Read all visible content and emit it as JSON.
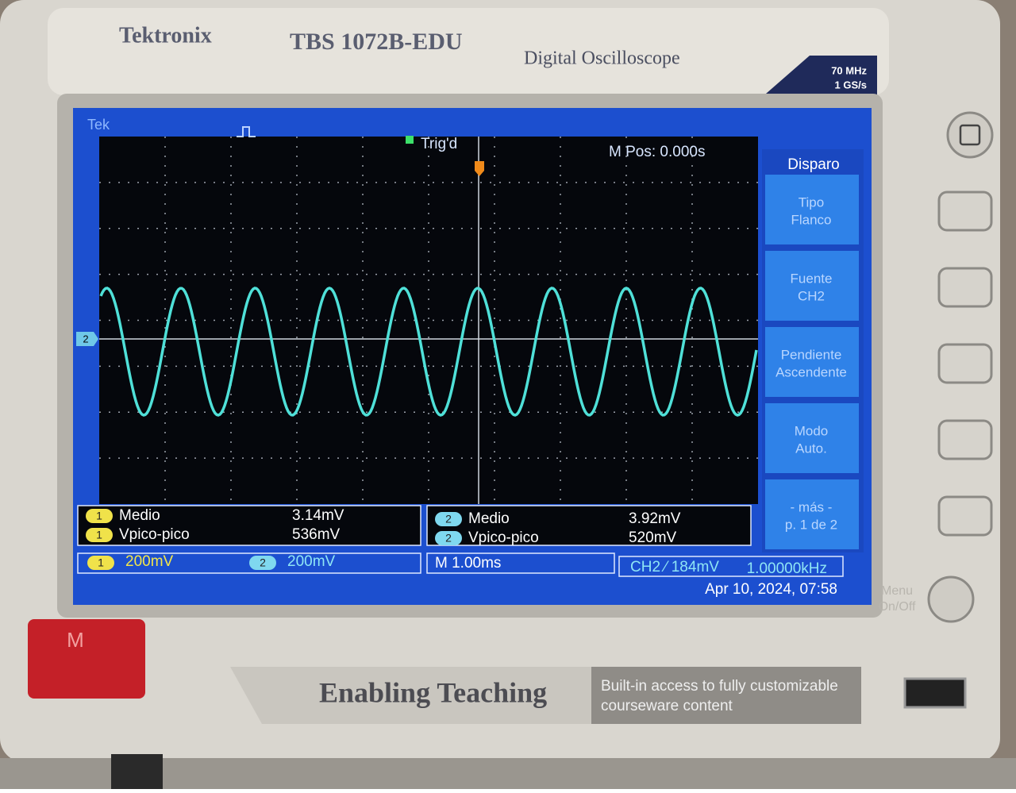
{
  "header": {
    "brand": "Tektronix",
    "model": "TBS 1072B-EDU",
    "product": "Digital Oscilloscope",
    "bandwidth": "70 MHz",
    "sample_rate": "1 GS/s"
  },
  "screen": {
    "logo": "Tek",
    "trigger_state": "Trig'd",
    "position": "M Pos: 0.000s",
    "channel_marker": "2"
  },
  "menu": {
    "title": "Disparo",
    "buttons": [
      [
        "Tipo",
        "Flanco"
      ],
      [
        "Fuente",
        "CH2"
      ],
      [
        "Pendiente",
        "Ascendente"
      ],
      [
        "Modo",
        "Auto."
      ],
      [
        "- más -",
        "p. 1 de 2"
      ]
    ]
  },
  "measurements": [
    {
      "channel": "1",
      "items": [
        {
          "label": "Medio",
          "value": "3.14mV"
        },
        {
          "label": "Vpico-pico",
          "value": "536mV"
        }
      ]
    },
    {
      "channel": "2",
      "items": [
        {
          "label": "Medio",
          "value": "3.92mV"
        },
        {
          "label": "Vpico-pico",
          "value": "520mV"
        }
      ]
    }
  ],
  "status": {
    "ch1_channel": "1",
    "ch1_scale": "200mV",
    "ch2_channel": "2",
    "ch2_scale": "200mV",
    "timebase": "M 1.00ms",
    "trigger": "CH2 ⁄ 184mV",
    "frequency": "1.00000kHz",
    "datetime": "Apr 10, 2024, 07:58"
  },
  "panel": {
    "menu_button": [
      "Menu",
      "On/Off"
    ],
    "sticker": "M",
    "slogan": "Enabling Teaching",
    "tagline": [
      "Built-in access to fully customizable",
      "courseware content"
    ]
  }
}
